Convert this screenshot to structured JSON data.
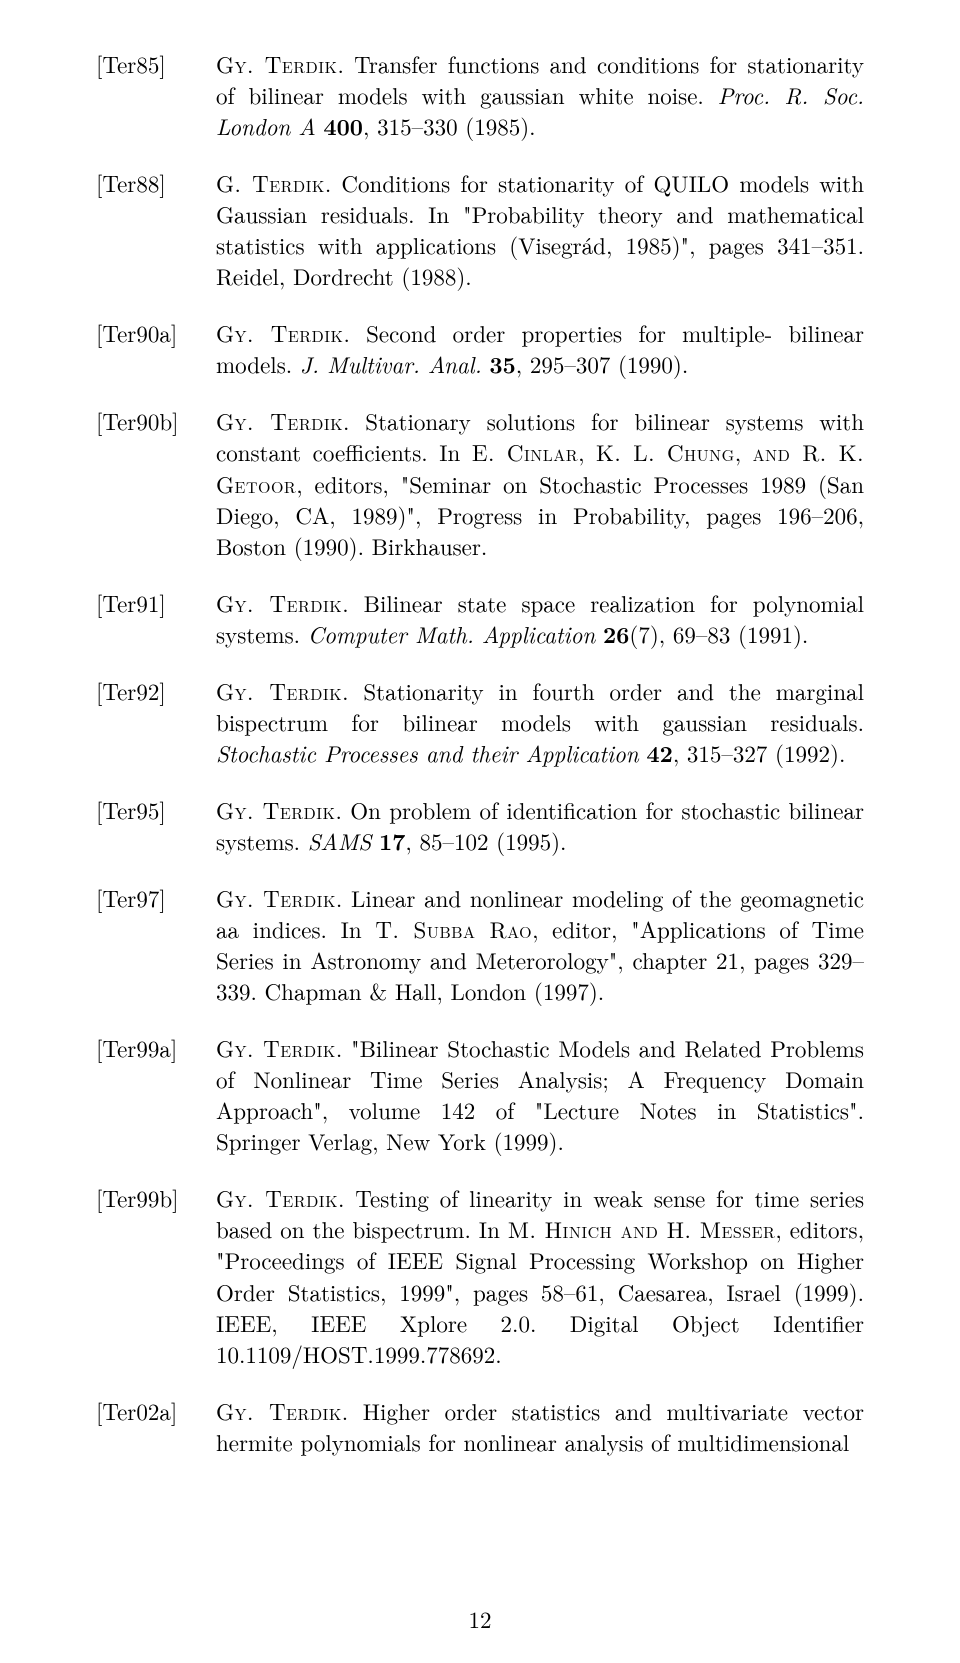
{
  "page_number": "12",
  "entries": [
    {
      "key": "[Ter85]",
      "body_html": "<span class='sc'>Gy. Terdik</span>. Transfer functions and conditions for stationarity of bilinear models with gaussian white noise. <span class='it'>Proc. R. Soc. London A</span> <span class='bf'>400</span>, 315–330 (1985)."
    },
    {
      "key": "[Ter88]",
      "body_html": "<span class='sc'>G. Terdik</span>. Conditions for stationarity of QUILO models with Gaussian residuals. In \"Probability theory and mathematical statistics with applications (Visegrád, 1985)\", pages 341–351. Reidel, Dordrecht (1988)."
    },
    {
      "key": "[Ter90a]",
      "body_html": "<span class='sc'>Gy. Terdik</span>. Second order properties for multiple- bilinear models. <span class='it'>J. Multivar. Anal.</span> <span class='bf'>35</span>, 295–307 (1990)."
    },
    {
      "key": "[Ter90b]",
      "body_html": "<span class='sc'>Gy. Terdik</span>. Stationary solutions for bilinear systems with constant coefficients. In <span class='sc'>E. Cinlar</span>, <span class='sc'>K. L. Chung</span>, <span class='sc'>and R. K. Getoor</span>, editors, \"Seminar on Stochastic Processes 1989 (San Diego, CA, 1989)\", Progress in Probability, pages 196–206, Boston (1990). Birkhauser."
    },
    {
      "key": "[Ter91]",
      "body_html": "<span class='sc'>Gy. Terdik</span>. Bilinear state space realization for polynomial systems. <span class='it'>Computer Math. Application</span> <span class='bf'>26</span>(7), 69–83 (1991)."
    },
    {
      "key": "[Ter92]",
      "body_html": "<span class='sc'>Gy. Terdik</span>. Stationarity in fourth order and the marginal bispectrum for bilinear models with gaussian residuals. <span class='it'>Stochastic Processes and their Application</span> <span class='bf'>42</span>, 315–327 (1992)."
    },
    {
      "key": "[Ter95]",
      "body_html": "<span class='sc'>Gy. Terdik</span>. On problem of identification for stochastic bilinear systems. <span class='it'>SAMS</span> <span class='bf'>17</span>, 85–102 (1995)."
    },
    {
      "key": "[Ter97]",
      "body_html": "<span class='sc'>Gy. Terdik</span>. Linear and nonlinear modeling of the geomagnetic aa indices. In <span class='sc'>T. Subba Rao</span>, editor, \"Applications of Time Series in Astronomy and Meterorology\", chapter 21, pages 329–339. Chapman & Hall, London (1997)."
    },
    {
      "key": "[Ter99a]",
      "body_html": "<span class='sc'>Gy. Terdik</span>. \"Bilinear Stochastic Models and Related Problems of Nonlinear Time Series Analysis; A Frequency Domain Approach\", volume 142 of \"Lecture Notes in Statistics\". Springer Verlag, New York (1999)."
    },
    {
      "key": "[Ter99b]",
      "body_html": "<span class='sc'>Gy. Terdik</span>. Testing of linearity in weak sense for time series based on the bispectrum. In <span class='sc'>M. Hinich and H. Messer</span>, editors, \"Proceedings of IEEE Signal Processing Workshop on Higher Order Statistics, 1999\", pages 58–61, Caesarea, Israel (1999). IEEE, IEEE Xplore 2.0. Digital Object Identifier 10.1109/HOST.1999.778692."
    },
    {
      "key": "[Ter02a]",
      "body_html": "<span class='sc'>Gy. Terdik</span>. Higher order statistics and multivariate vector hermite polynomials for nonlinear analysis of multidimensional"
    }
  ]
}
